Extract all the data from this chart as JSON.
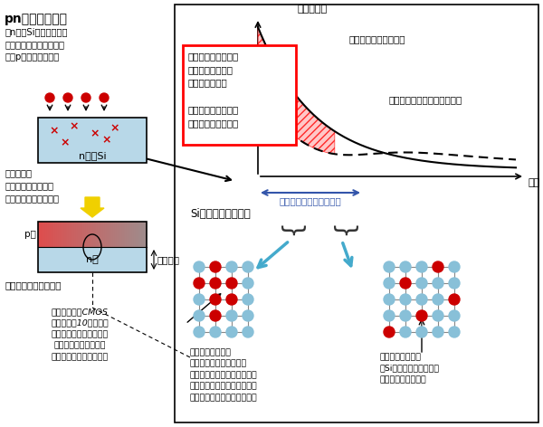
{
  "title": "pn接合の形成法",
  "left_text1": "（n形のSi表面に不純物\n（ホウ素）を導入して表\n面にp層を作る場合）",
  "si_label": "n形のSi",
  "impurity_intro": "不純物導入\n（イオン注入法やプ\nラズマドーピング法）",
  "p_label": "p層",
  "n_label": "n層",
  "junction_label": "接合深さ",
  "heat_label": "活性化のための熱処理",
  "italic_text": "最先端の微細CMOS\nではこれを10ナノメー\nトル以下で作らないとい\nけない。熱処理し過ぎ\nると深くなってしまう。",
  "graph_ylabel": "不純物濃度",
  "graph_xlabel": "深さ",
  "graph_label1": "不純物全体の濃度分布",
  "graph_label2": "活性化した不純物の濃度分布",
  "junction_depth_label": "接合（ドープ層）の深さ",
  "red_box_text": "この領域がどうなっ\nているかが良くわ\nかっていない。\n\nクラスターの種類？\nクラスターの分布？",
  "crystal_title": "Si結晶中の原子配列",
  "cluster_label": "不純物クラスター\n（不純物原子が複数寄り\n集まった状態。クラスターの\n構造はいろいろ種類がある。\n電気的には不活性となる。）",
  "activated_label": "活性化した不純物\n（Siの結晶格子に単独で\n組み込まれている）",
  "bg_color": "#ffffff",
  "si_box_color": "#b8d8e8",
  "p_layer_color_left": "#e05050",
  "p_layer_color_right": "#f0c0c0",
  "arrow_color": "#f0d000",
  "red_dot_color": "#cc0000",
  "blue_dot_color": "#88c0d8",
  "line_color": "#666666",
  "right_panel_border": "#000000",
  "junction_arrow_color": "#3355aa",
  "cyan_arrow_color": "#44aacc"
}
